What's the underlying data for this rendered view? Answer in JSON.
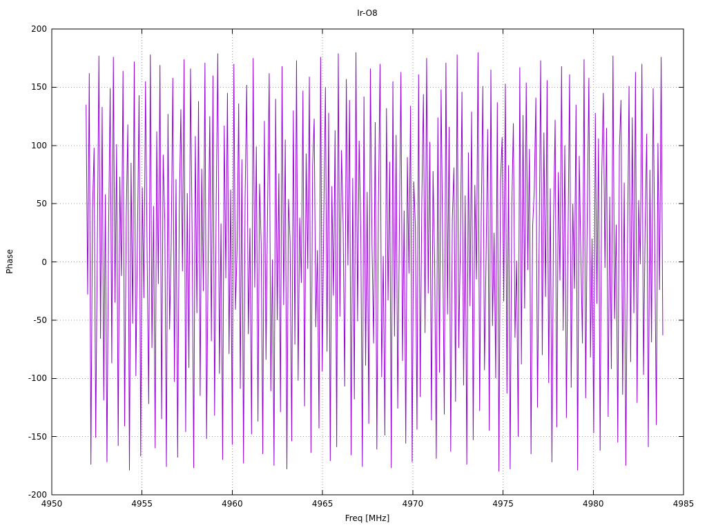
{
  "chart_data": {
    "type": "line",
    "title": "Ir-O8",
    "xlabel": "Freq [MHz]",
    "ylabel": "Phase",
    "xlim": [
      4950,
      4985
    ],
    "ylim": [
      -200,
      200
    ],
    "grid": "dotted",
    "legend": "none",
    "xtick_values": [
      4950,
      4955,
      4960,
      4965,
      4970,
      4975,
      4980,
      4985
    ],
    "xtick_labels": [
      "4950",
      "4955",
      "4960",
      "4965",
      "4970",
      "4975",
      "4980",
      "4985"
    ],
    "ytick_values": [
      -200,
      -150,
      -100,
      -50,
      0,
      50,
      100,
      150,
      200
    ],
    "ytick_labels": [
      "-200",
      "-150",
      "-100",
      "-50",
      "0",
      "50",
      "100",
      "150",
      "200"
    ],
    "series": [
      {
        "name": "phase",
        "color": "#9400d3",
        "x_start": 4951.9,
        "x_end": 4983.85,
        "values": [
          135,
          -28,
          162,
          -174,
          45,
          98,
          -151,
          12,
          177,
          -66,
          133,
          -119,
          58,
          -172,
          24,
          149,
          -87,
          176,
          -35,
          101,
          -158,
          73,
          -12,
          164,
          -141,
          39,
          118,
          -179,
          85,
          -53,
          172,
          -98,
          21,
          143,
          -167,
          64,
          -31,
          155,
          7,
          -122,
          178,
          -74,
          48,
          -160,
          112,
          -19,
          169,
          -135,
          92,
          36,
          -176,
          127,
          -58,
          15,
          158,
          -103,
          71,
          -168,
          42,
          131,
          -8,
          174,
          -146,
          59,
          -91,
          166,
          26,
          -177,
          108,
          -44,
          138,
          -115,
          80,
          -25,
          171,
          -152,
          4,
          125,
          -68,
          160,
          -132,
          51,
          179,
          -96,
          33,
          -170,
          117,
          -14,
          145,
          -79,
          62,
          -157,
          170,
          -41,
          11,
          136,
          -109,
          88,
          -173,
          55,
          152,
          -62,
          29,
          -148,
          175,
          -22,
          99,
          -137,
          67,
          16,
          -165,
          121,
          -84,
          47,
          162,
          -111,
          2,
          -175,
          140,
          -50,
          76,
          -129,
          168,
          -37,
          105,
          -178,
          54,
          19,
          -154,
          130,
          -71,
          173,
          -102,
          38,
          -18,
          147,
          -124,
          93,
          -6,
          159,
          -164,
          82,
          123,
          -56,
          10,
          -143,
          176,
          -94,
          41,
          150,
          -77,
          128,
          -171,
          65,
          -29,
          113,
          -159,
          179,
          -47,
          96,
          34,
          -107,
          157,
          -3,
          139,
          -166,
          72,
          -118,
          180,
          -51,
          104,
          27,
          -176,
          142,
          -89,
          60,
          -139,
          166,
          14,
          -70,
          120,
          -161,
          49,
          170,
          -99,
          5,
          -149,
          132,
          -33,
          86,
          -177,
          155,
          -64,
          109,
          -126,
          22,
          163,
          -85,
          44,
          -156,
          90,
          -10,
          134,
          -172,
          69,
          30,
          -144,
          161,
          -116,
          52,
          144,
          -61,
          175,
          -27,
          103,
          -136,
          78,
          -1,
          -169,
          124,
          -95,
          148,
          17,
          -131,
          171,
          -45,
          116,
          -163,
          37,
          81,
          -120,
          178,
          -74,
          13,
          146,
          -106,
          57,
          -174,
          94,
          -38,
          129,
          -153,
          66,
          -15,
          180,
          -128,
          40,
          151,
          -93,
          3,
          114,
          -145,
          165,
          -55,
          25,
          -100,
          137,
          -180,
          70,
          107,
          -34,
          153,
          -113,
          83,
          -178,
          46,
          119,
          -65,
          1,
          -150,
          167,
          -88,
          126,
          -40,
          154,
          -7,
          97,
          -165,
          31,
          61,
          141,
          -125,
          9,
          173,
          -80,
          111,
          -30,
          156,
          -104,
          63,
          -172,
          35,
          122,
          -142,
          77,
          -16,
          168,
          -59,
          100,
          -134,
          18,
          161,
          -108,
          50,
          -23,
          135,
          -179,
          91,
          6,
          -70,
          174,
          -117,
          43,
          158,
          -82,
          20,
          -147,
          128,
          -36,
          106,
          -162,
          74,
          145,
          -5,
          115,
          -133,
          56,
          -92,
          177,
          -49,
          32,
          -155,
          98,
          139,
          -114,
          68,
          -175,
          8,
          151,
          -86,
          124,
          -44,
          163,
          -121,
          53,
          -2,
          170,
          -97,
          28,
          110,
          -159,
          79,
          -69,
          149,
          16,
          -140,
          102,
          -24,
          176,
          -63
        ]
      }
    ]
  }
}
